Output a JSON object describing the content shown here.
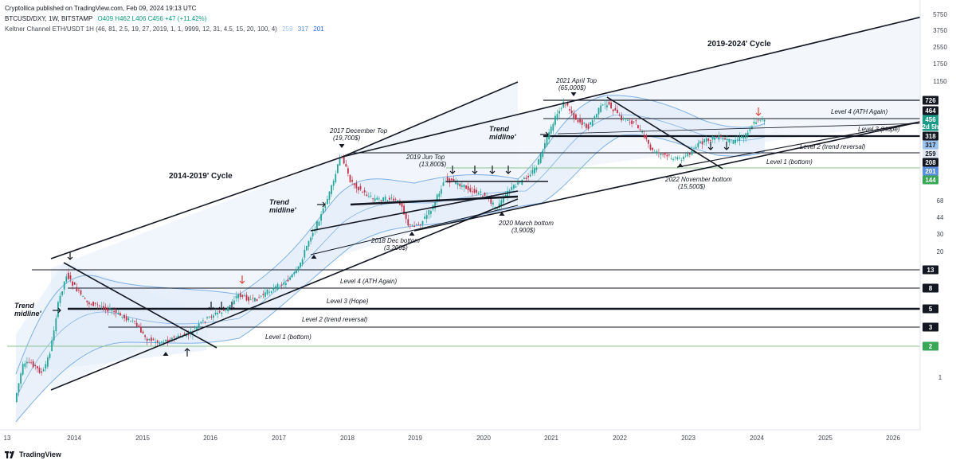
{
  "header": {
    "published": "Cryptollica published on TradingView.com, Feb 09, 2024 19:13 UTC",
    "symbol": "BTCUSD/DXY, 1W, BITSTAMP",
    "ohlc": "O409 H462 L406 C456 +47 (+11.42%)",
    "indicator": "Keltner Channel ETH/USDT 1H (46, 81, 2.5, 19, 27, 2019, 1, 1, 9999, 12, 31, 4.5, 15, 20, 100, 4)",
    "indicator_values": [
      "259",
      "317",
      "201"
    ]
  },
  "footer": {
    "brand": "TradingView",
    "logo_icon": "tradingview-logo-icon"
  },
  "colors": {
    "channel_fill": "#e3ecf9",
    "channel_line": "#7fb0e6",
    "up_candle": "#26a69a",
    "down_candle": "#c2334a",
    "level_line": "#131722",
    "green_line": "#8bc48e",
    "arrow_red": "#e0453a"
  },
  "chart_data": {
    "type": "candlestick-log",
    "y_scale": "log",
    "y_ticks": [
      "5750",
      "3750",
      "2550",
      "1750",
      "1150",
      "68",
      "44",
      "30",
      "20",
      "1"
    ],
    "x_ticks": [
      "13",
      "2014",
      "2015",
      "2016",
      "2017",
      "2018",
      "2019",
      "2020",
      "2021",
      "2022",
      "2023",
      "2024",
      "2025",
      "2026"
    ],
    "price_badges": [
      {
        "value": "726",
        "color": "#131722"
      },
      {
        "value": "464",
        "color": "#131722"
      },
      {
        "value": "456",
        "color": "#1e9a89"
      },
      {
        "value": "2d 5h",
        "color": "#1e9a89"
      },
      {
        "value": "318",
        "color": "#131722"
      },
      {
        "value": "317",
        "color": "#9cc3ee"
      },
      {
        "value": "259",
        "color": "#e1e8f2"
      },
      {
        "value": "208",
        "color": "#131722"
      },
      {
        "value": "201",
        "color": "#5b8fdc"
      },
      {
        "value": "144",
        "color": "#3aa657"
      },
      {
        "value": "13",
        "color": "#131722"
      },
      {
        "value": "8",
        "color": "#131722"
      },
      {
        "value": "5",
        "color": "#131722"
      },
      {
        "value": "3",
        "color": "#131722"
      },
      {
        "value": "2",
        "color": "#3aa657"
      }
    ],
    "cycles": [
      "2014-2019' Cycle",
      "2019-2024' Cycle"
    ],
    "levels_2014_2019": [
      "Level 4 (ATH Again)",
      "Level 3 (Hope)",
      "Level 2 (trend reversal)",
      "Level 1 (bottom)"
    ],
    "levels_2019_2024": [
      "Level 4 (ATH Again)",
      "Level 3 (Hope)",
      "Level 2 (trend reversal)",
      "Level 1 (bottom)"
    ],
    "trend_label": "Trend midline'",
    "annotations": [
      {
        "title": "2017 December Top",
        "value": "(19,700$)"
      },
      {
        "title": "2019 Jun Top",
        "value": "(13,800$)"
      },
      {
        "title": "2018 Dec bottom",
        "value": "(3,200$)"
      },
      {
        "title": "2020 March bottom",
        "value": "(3,900$)"
      },
      {
        "title": "2021 April Top",
        "value": "(65,000$)"
      },
      {
        "title": "2022 November bottom",
        "value": "(15,500$)"
      }
    ]
  }
}
